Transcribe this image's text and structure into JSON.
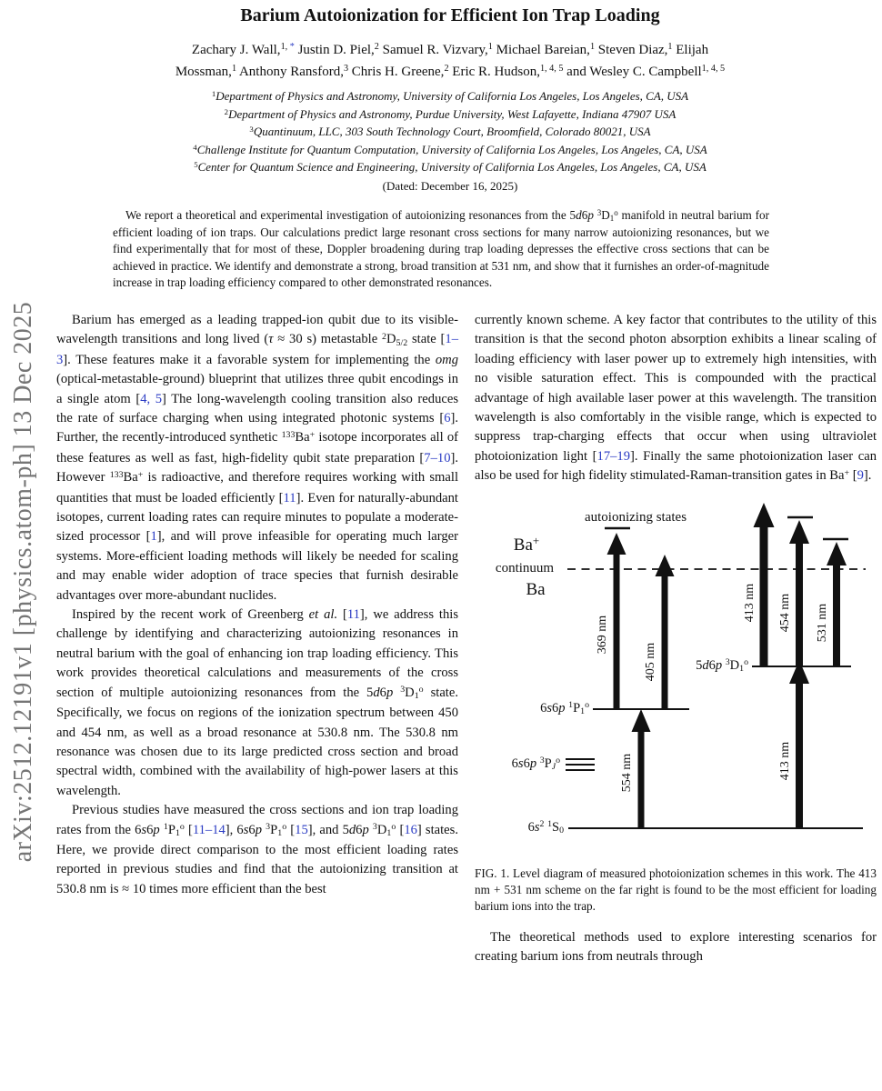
{
  "colors": {
    "citation_blue": "#2b3cc4",
    "stamp_gray": "#757575"
  },
  "arxiv_stamp": "arXiv:2512.12191v1  [physics.atom-ph]  13 Dec 2025",
  "title": "Barium Autoionization for Efficient Ion Trap Loading",
  "authors": {
    "line1": [
      {
        "t": "Zachary J. Wall,"
      },
      {
        "t": "1, ",
        "s": "sup"
      },
      {
        "t": "*",
        "s": "sup cite"
      },
      {
        "t": " Justin D. Piel,"
      },
      {
        "t": "2",
        "s": "sup"
      },
      {
        "t": " Samuel R. Vizvary,"
      },
      {
        "t": "1",
        "s": "sup"
      },
      {
        "t": " Michael Bareian,"
      },
      {
        "t": "1",
        "s": "sup"
      },
      {
        "t": " Steven Diaz,"
      },
      {
        "t": "1",
        "s": "sup"
      },
      {
        "t": " Elijah"
      }
    ],
    "line2": [
      {
        "t": "Mossman,"
      },
      {
        "t": "1",
        "s": "sup"
      },
      {
        "t": " Anthony Ransford,"
      },
      {
        "t": "3",
        "s": "sup"
      },
      {
        "t": " Chris H. Greene,"
      },
      {
        "t": "2",
        "s": "sup"
      },
      {
        "t": " Eric R. Hudson,"
      },
      {
        "t": "1, 4, 5",
        "s": "sup"
      },
      {
        "t": " and Wesley C. Campbell"
      },
      {
        "t": "1, 4, 5",
        "s": "sup"
      }
    ]
  },
  "affiliations": [
    [
      {
        "t": "1",
        "s": "sup"
      },
      {
        "t": "Department of Physics and Astronomy, University of California Los Angeles, Los Angeles, CA, USA",
        "s": "i"
      }
    ],
    [
      {
        "t": "2",
        "s": "sup"
      },
      {
        "t": "Department of Physics and Astronomy, Purdue University, West Lafayette, Indiana 47907 USA",
        "s": "i"
      }
    ],
    [
      {
        "t": "3",
        "s": "sup"
      },
      {
        "t": "Quantinuum, LLC, 303 South Technology Court, Broomfield, Colorado 80021, USA",
        "s": "i"
      }
    ],
    [
      {
        "t": "4",
        "s": "sup"
      },
      {
        "t": "Challenge Institute for Quantum Computation, University of California Los Angeles, Los Angeles, CA, USA",
        "s": "i"
      }
    ],
    [
      {
        "t": "5",
        "s": "sup"
      },
      {
        "t": "Center for Quantum Science and Engineering, University of California Los Angeles, Los Angeles, CA, USA",
        "s": "i"
      }
    ]
  ],
  "date_line": "(Dated: December 16, 2025)",
  "abstract": [
    {
      "t": "We report a theoretical and experimental investigation of autoionizing resonances from the 5"
    },
    {
      "t": "d",
      "s": "i"
    },
    {
      "t": "6"
    },
    {
      "t": "p",
      "s": "i"
    },
    {
      "t": " "
    },
    {
      "t": "3",
      "s": "sup"
    },
    {
      "t": "D"
    },
    {
      "t": "1",
      "s": "sub"
    },
    {
      "t": "o",
      "s": "sup"
    },
    {
      "t": " manifold in neutral barium for efficient loading of ion traps.  Our calculations predict large resonant cross sections for many narrow autoionizing resonances, but we find experimentally that for most of these, Doppler broadening during trap loading depresses the effective cross sections that can be achieved in practice. We identify and demonstrate a strong, broad transition at 531 nm, and show that it furnishes an order-of-magnitude increase in trap loading efficiency compared to other demonstrated resonances."
    }
  ],
  "left_column": {
    "para1": [
      {
        "t": "Barium has emerged as a leading trapped-ion qubit due to its visible-wavelength transitions and long lived ("
      },
      {
        "t": "τ",
        "s": "i"
      },
      {
        "t": " ≈ 30 s) metastable "
      },
      {
        "t": "2",
        "s": "sup"
      },
      {
        "t": "D"
      },
      {
        "t": "5/2",
        "s": "sub"
      },
      {
        "t": " state ["
      },
      {
        "t": "1–3",
        "s": "cite"
      },
      {
        "t": "].  These features make it a favorable system for implementing the "
      },
      {
        "t": "omg",
        "s": "i"
      },
      {
        "t": " (optical-metastable-ground) blueprint that utilizes three qubit encodings in a single atom ["
      },
      {
        "t": "4, 5",
        "s": "cite"
      },
      {
        "t": "] The long-wavelength cooling transition also reduces the rate of surface charging when using integrated photonic systems ["
      },
      {
        "t": "6",
        "s": "cite"
      },
      {
        "t": "].  Further, the recently-introduced synthetic "
      },
      {
        "t": "133",
        "s": "sup"
      },
      {
        "t": "Ba"
      },
      {
        "t": "+",
        "s": "sup"
      },
      {
        "t": " isotope incorporates all of these features as well as fast, high-fidelity qubit state preparation ["
      },
      {
        "t": "7–10",
        "s": "cite"
      },
      {
        "t": "].  However "
      },
      {
        "t": "133",
        "s": "sup"
      },
      {
        "t": "Ba"
      },
      {
        "t": "+",
        "s": "sup"
      },
      {
        "t": " is radioactive, and therefore requires working with small quantities that must be loaded efficiently ["
      },
      {
        "t": "11",
        "s": "cite"
      },
      {
        "t": "]. Even for naturally-abundant isotopes, current loading rates can require minutes to populate a moderate-sized processor ["
      },
      {
        "t": "1",
        "s": "cite"
      },
      {
        "t": "], and will prove infeasible for operating much larger systems. More-efficient loading methods will likely be needed for scaling and may enable wider adoption of trace species that furnish desirable advantages over more-abundant nuclides."
      }
    ],
    "para2": [
      {
        "t": "Inspired by the recent work of Greenberg "
      },
      {
        "t": "et al.",
        "s": "i"
      },
      {
        "t": " ["
      },
      {
        "t": "11",
        "s": "cite"
      },
      {
        "t": "], we address this challenge by identifying and characterizing autoionizing resonances in neutral barium with the goal of enhancing ion trap loading efficiency.  This work provides theoretical calculations and measurements of the cross section of multiple autoionizing resonances from the 5"
      },
      {
        "t": "d",
        "s": "i"
      },
      {
        "t": "6"
      },
      {
        "t": "p",
        "s": "i"
      },
      {
        "t": " "
      },
      {
        "t": "3",
        "s": "sup"
      },
      {
        "t": "D"
      },
      {
        "t": "1",
        "s": "sub"
      },
      {
        "t": "o",
        "s": "sup"
      },
      {
        "t": " state.  Specifically, we focus on regions of the ionization spectrum between 450 and 454 nm, as well as a broad resonance at 530.8 nm.  The 530.8 nm resonance was chosen due to its large predicted cross section and broad spectral width, combined with the availability of high-power lasers at this wavelength."
      }
    ],
    "para3": [
      {
        "t": "Previous studies have measured the cross sections and ion trap loading rates from the 6"
      },
      {
        "t": "s",
        "s": "i"
      },
      {
        "t": "6"
      },
      {
        "t": "p",
        "s": "i"
      },
      {
        "t": " "
      },
      {
        "t": "1",
        "s": "sup"
      },
      {
        "t": "P"
      },
      {
        "t": "1",
        "s": "sub"
      },
      {
        "t": "o",
        "s": "sup"
      },
      {
        "t": " ["
      },
      {
        "t": "11–14",
        "s": "cite"
      },
      {
        "t": "], 6"
      },
      {
        "t": "s",
        "s": "i"
      },
      {
        "t": "6"
      },
      {
        "t": "p",
        "s": "i"
      },
      {
        "t": " "
      },
      {
        "t": "3",
        "s": "sup"
      },
      {
        "t": "P"
      },
      {
        "t": "1",
        "s": "sub"
      },
      {
        "t": "o",
        "s": "sup"
      },
      {
        "t": " ["
      },
      {
        "t": "15",
        "s": "cite"
      },
      {
        "t": "], and 5"
      },
      {
        "t": "d",
        "s": "i"
      },
      {
        "t": "6"
      },
      {
        "t": "p",
        "s": "i"
      },
      {
        "t": " "
      },
      {
        "t": "3",
        "s": "sup"
      },
      {
        "t": "D"
      },
      {
        "t": "1",
        "s": "sub"
      },
      {
        "t": "o",
        "s": "sup"
      },
      {
        "t": " ["
      },
      {
        "t": "16",
        "s": "cite"
      },
      {
        "t": "] states.  Here, we provide direct comparison to the most efficient loading rates reported in previous studies and find that the autoionizing transition at 530.8 nm is ≈ 10 times more efficient than the best"
      }
    ]
  },
  "right_column": {
    "para1": [
      {
        "t": "currently known scheme.  A key factor that contributes to the utility of this transition is that the second photon absorption exhibits a linear scaling of loading efficiency with laser power up to extremely high intensities, with no visible saturation effect.  This is compounded with the practical advantage of high available laser power at this wavelength.  The transition wavelength is also comfortably in the visible range, which is expected to suppress trap-charging effects that occur when using ultraviolet photoionization light ["
      },
      {
        "t": "17–19",
        "s": "cite"
      },
      {
        "t": "].  Finally the same photoionization laser can also be used for high fidelity stimulated-Raman-transition gates in Ba"
      },
      {
        "t": "+",
        "s": "sup"
      },
      {
        "t": " ["
      },
      {
        "t": "9",
        "s": "cite"
      },
      {
        "t": "]."
      }
    ],
    "para2": [
      {
        "t": "The theoretical methods used to explore interesting scenarios for creating barium ions from neutrals through"
      }
    ]
  },
  "figure": {
    "autoionizing_label": "autoionizing states",
    "ba_plus": [
      {
        "t": "Ba"
      },
      {
        "t": "+",
        "s": "sup"
      }
    ],
    "continuum": "continuum",
    "ba": "Ba",
    "levels": {
      "d_state": [
        {
          "t": "5"
        },
        {
          "t": "d",
          "s": "i"
        },
        {
          "t": "6"
        },
        {
          "t": "p",
          "s": "i"
        },
        {
          "t": " "
        },
        {
          "t": "3",
          "s": "sup"
        },
        {
          "t": "D"
        },
        {
          "t": "1",
          "s": "sub"
        },
        {
          "t": "o",
          "s": "sup"
        }
      ],
      "p1_state": [
        {
          "t": "6"
        },
        {
          "t": "s",
          "s": "i"
        },
        {
          "t": "6"
        },
        {
          "t": "p",
          "s": "i"
        },
        {
          "t": " "
        },
        {
          "t": "1",
          "s": "sup"
        },
        {
          "t": "P"
        },
        {
          "t": "1",
          "s": "sub"
        },
        {
          "t": "o",
          "s": "sup"
        }
      ],
      "p3_state": [
        {
          "t": "6"
        },
        {
          "t": "s",
          "s": "i"
        },
        {
          "t": "6"
        },
        {
          "t": "p",
          "s": "i"
        },
        {
          "t": " "
        },
        {
          "t": "3",
          "s": "sup"
        },
        {
          "t": "P"
        },
        {
          "t": "J",
          "s": "sub i"
        },
        {
          "t": "o",
          "s": "sup"
        }
      ],
      "ground": [
        {
          "t": "6"
        },
        {
          "t": "s",
          "s": "i"
        },
        {
          "t": "2",
          "s": "sup"
        },
        {
          "t": " "
        },
        {
          "t": "1",
          "s": "sup"
        },
        {
          "t": "S"
        },
        {
          "t": "0",
          "s": "sub"
        }
      ]
    },
    "arrows": {
      "a369": "369 nm",
      "a405": "405 nm",
      "a554": "554 nm",
      "a413_upper": "413 nm",
      "a454": "454 nm",
      "a531": "531 nm",
      "a413_lower": "413 nm"
    },
    "caption": [
      {
        "t": "FIG. 1.  Level diagram of measured photoionization schemes in this work.  The 413 nm + 531 nm scheme on the far right is found to be the most efficient for loading barium ions into the trap."
      }
    ]
  }
}
